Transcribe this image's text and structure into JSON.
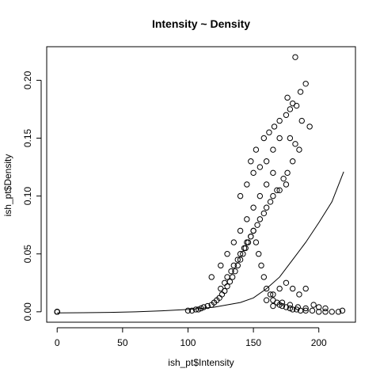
{
  "chart_data": {
    "type": "scatter",
    "title": "Intensity ~ Density",
    "xlabel": "ish_pt$Intensity",
    "ylabel": "ish_pt$Density",
    "xlim": [
      -8,
      228
    ],
    "ylim": [
      -0.009,
      0.229
    ],
    "x_ticks": [
      0,
      50,
      100,
      150,
      200
    ],
    "x_tick_labels": [
      "0",
      "50",
      "100",
      "150",
      "200"
    ],
    "y_ticks": [
      0.0,
      0.05,
      0.1,
      0.15,
      0.2
    ],
    "y_tick_labels": [
      "0.00",
      "0.05",
      "0.10",
      "0.15",
      "0.20"
    ],
    "grid": false,
    "marker": "open-circle",
    "colors": {
      "points": "#000000",
      "line": "#000000",
      "axes": "#000000",
      "background": "#ffffff"
    },
    "series": [
      {
        "kind": "points",
        "x": [
          0,
          0,
          0,
          0,
          100,
          103,
          106,
          108,
          110,
          112,
          115,
          118,
          120,
          122,
          124,
          126,
          128,
          130,
          132,
          134,
          136,
          138,
          140,
          142,
          144,
          146,
          148,
          150,
          152,
          154,
          156,
          158,
          160,
          163,
          165,
          168,
          170,
          172,
          175,
          178,
          180,
          183,
          186,
          190,
          195,
          200,
          205,
          210,
          215,
          218,
          118,
          125,
          130,
          135,
          140,
          145,
          150,
          155,
          160,
          165,
          128,
          133,
          138,
          143,
          148,
          153,
          158,
          163,
          168,
          173,
          125,
          130,
          135,
          140,
          145,
          150,
          155,
          160,
          165,
          170,
          140,
          145,
          150,
          155,
          160,
          165,
          170,
          148,
          152,
          158,
          162,
          166,
          170,
          175,
          178,
          176,
          180,
          183,
          182,
          186,
          187,
          190,
          193,
          178,
          182,
          185,
          180,
          176,
          175,
          160,
          165,
          170,
          175,
          180,
          185,
          190,
          165,
          172,
          178,
          184,
          190,
          196,
          200,
          205
        ],
        "y": [
          0.0,
          0.0,
          0.0,
          0.0,
          0.001,
          0.001,
          0.002,
          0.002,
          0.003,
          0.004,
          0.005,
          0.006,
          0.008,
          0.01,
          0.012,
          0.015,
          0.018,
          0.022,
          0.026,
          0.03,
          0.035,
          0.04,
          0.045,
          0.05,
          0.055,
          0.06,
          0.065,
          0.07,
          0.06,
          0.05,
          0.04,
          0.03,
          0.02,
          0.015,
          0.01,
          0.008,
          0.006,
          0.005,
          0.004,
          0.003,
          0.002,
          0.002,
          0.001,
          0.001,
          0.001,
          0.0,
          0.0,
          0.0,
          0.0,
          0.001,
          0.03,
          0.04,
          0.05,
          0.06,
          0.07,
          0.08,
          0.09,
          0.1,
          0.11,
          0.12,
          0.025,
          0.035,
          0.045,
          0.055,
          0.065,
          0.075,
          0.085,
          0.095,
          0.105,
          0.115,
          0.02,
          0.03,
          0.04,
          0.05,
          0.06,
          0.07,
          0.08,
          0.09,
          0.1,
          0.105,
          0.1,
          0.11,
          0.12,
          0.125,
          0.13,
          0.14,
          0.15,
          0.13,
          0.14,
          0.15,
          0.155,
          0.16,
          0.165,
          0.17,
          0.175,
          0.185,
          0.18,
          0.178,
          0.22,
          0.19,
          0.165,
          0.197,
          0.16,
          0.15,
          0.145,
          0.14,
          0.13,
          0.12,
          0.11,
          0.01,
          0.015,
          0.02,
          0.025,
          0.02,
          0.015,
          0.02,
          0.005,
          0.008,
          0.006,
          0.004,
          0.003,
          0.006,
          0.004,
          0.003
        ]
      },
      {
        "kind": "line",
        "x": [
          0,
          20,
          40,
          60,
          80,
          100,
          120,
          140,
          150,
          160,
          170,
          180,
          190,
          200,
          210,
          219
        ],
        "y": [
          -0.001,
          -0.0008,
          -0.0005,
          0.0,
          0.0008,
          0.002,
          0.004,
          0.008,
          0.012,
          0.02,
          0.03,
          0.045,
          0.06,
          0.077,
          0.095,
          0.121
        ]
      }
    ]
  }
}
